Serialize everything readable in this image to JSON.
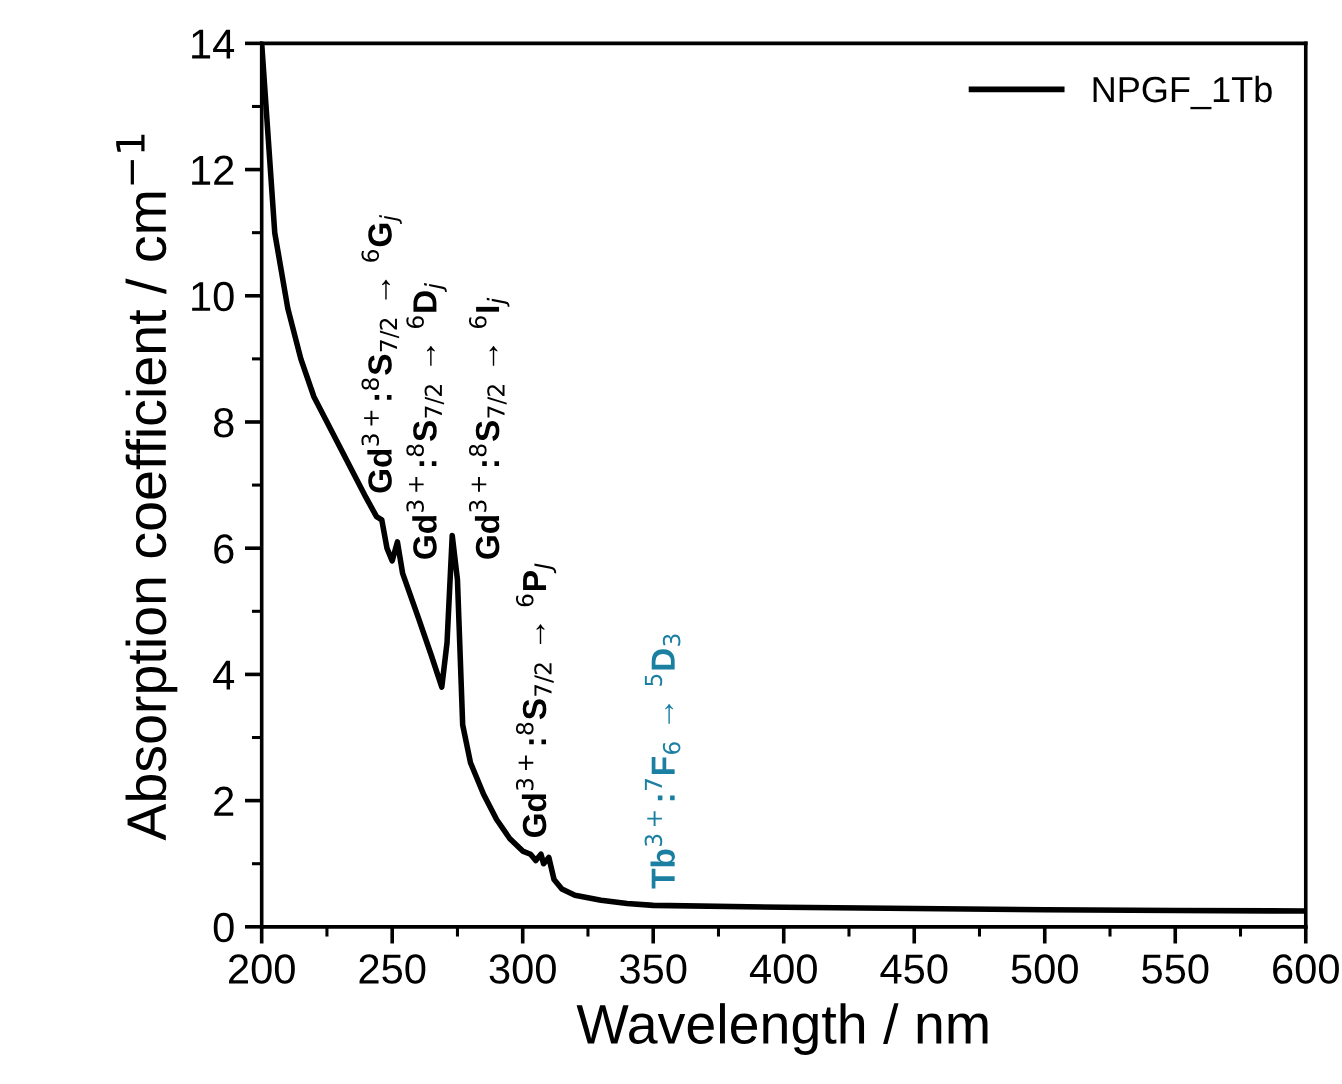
{
  "chart_data": {
    "type": "line",
    "xlabel": "Wavelength / nm",
    "ylabel": "Absorption coefficient / cm$^{−1}$",
    "xlim": [
      200,
      600
    ],
    "xticks": [
      200,
      250,
      300,
      350,
      400,
      450,
      500,
      550,
      600
    ],
    "ylim": [
      0,
      14
    ],
    "yticks": [
      0,
      2,
      4,
      6,
      8,
      10,
      12,
      14
    ],
    "grid": false,
    "legend": "top right",
    "marker": "none",
    "line_style": "solid",
    "series": [
      {
        "name": "NPGF_1Tb",
        "color": "#000000",
        "x": [
          200,
          202,
          205,
          210,
          215,
          220,
          225,
          230,
          235,
          240,
          244,
          246,
          248,
          250,
          252,
          254,
          260,
          265,
          269,
          271,
          273,
          275,
          277,
          280,
          285,
          290,
          295,
          300,
          303,
          305,
          307,
          308,
          310,
          312,
          315,
          320,
          330,
          340,
          350,
          400,
          450,
          500,
          550,
          600
        ],
        "values": [
          14,
          12.8,
          11,
          9.8,
          9.0,
          8.4,
          8.0,
          7.6,
          7.2,
          6.8,
          6.5,
          6.45,
          6.0,
          5.8,
          6.1,
          5.6,
          4.9,
          4.3,
          3.8,
          4.5,
          6.2,
          5.5,
          3.2,
          2.6,
          2.1,
          1.7,
          1.4,
          1.2,
          1.15,
          1.05,
          1.15,
          1.0,
          1.1,
          0.75,
          0.6,
          0.5,
          0.42,
          0.37,
          0.34,
          0.31,
          0.29,
          0.27,
          0.26,
          0.25
        ]
      }
    ],
    "annotations": [
      "Gd$^{3+}$:$^{8}$S$_{7/2}$ → $^{6}$G$_{j}$",
      "Gd$^{3+}$:$^{8}$S$_{7/2}$ → $^{6}$D$_{j}$",
      "Gd$^{3+}$:$^{8}$S$_{7/2}$ → $^{6}$I$_{j}$",
      "Gd$^{3+}$:$^{8}$S$_{7/2}$ → $^{6}$P$_{J}$",
      "Tb$^{3+}$:$^{7}$F$_{6}$ → $^{5}$D$_{3}$"
    ]
  }
}
